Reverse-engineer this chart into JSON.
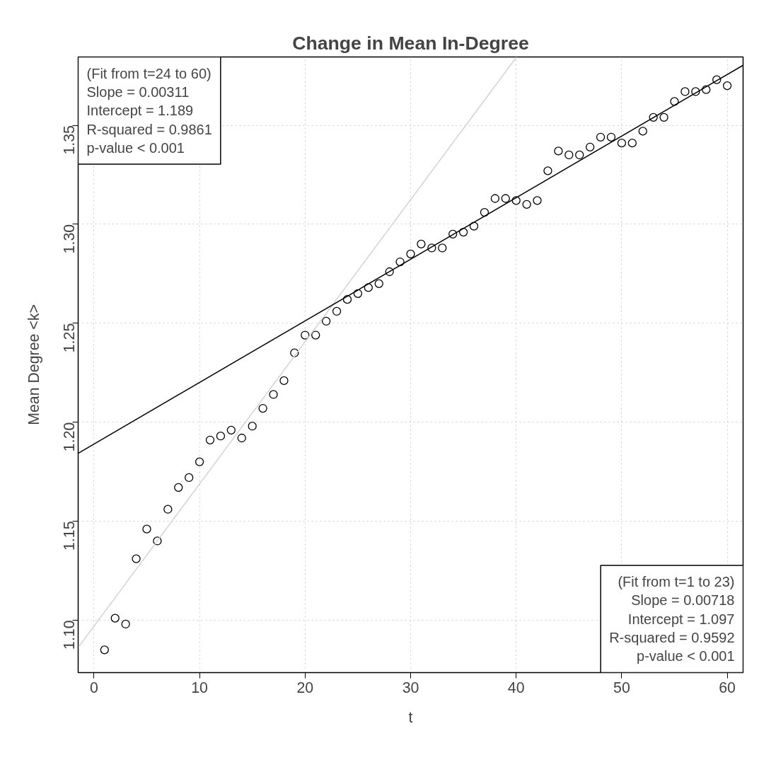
{
  "chart_data": {
    "type": "scatter",
    "title": "Change in Mean In-Degree",
    "xlabel": "t",
    "ylabel": "Mean Degree <k>",
    "xlim": [
      -1.5,
      61.5
    ],
    "ylim": [
      1.0735,
      1.3845
    ],
    "xticks": [
      0,
      10,
      20,
      30,
      40,
      50,
      60
    ],
    "yticks": [
      {
        "value": 1.1,
        "label": "1.10"
      },
      {
        "value": 1.15,
        "label": "1.15"
      },
      {
        "value": 1.2,
        "label": "1.20"
      },
      {
        "value": 1.25,
        "label": "1.25"
      },
      {
        "value": 1.3,
        "label": "1.30"
      },
      {
        "value": 1.35,
        "label": "1.35"
      }
    ],
    "grid": true,
    "x": [
      1,
      2,
      3,
      4,
      5,
      6,
      7,
      8,
      9,
      10,
      11,
      12,
      13,
      14,
      15,
      16,
      17,
      18,
      19,
      20,
      21,
      22,
      23,
      24,
      25,
      26,
      27,
      28,
      29,
      30,
      31,
      32,
      33,
      34,
      35,
      36,
      37,
      38,
      39,
      40,
      41,
      42,
      43,
      44,
      45,
      46,
      47,
      48,
      49,
      50,
      51,
      52,
      53,
      54,
      55,
      56,
      57,
      58,
      59,
      60
    ],
    "series": [
      {
        "marker": "circle",
        "color": "#000000",
        "values": [
          1.085,
          1.101,
          1.098,
          1.131,
          1.146,
          1.14,
          1.156,
          1.167,
          1.172,
          1.18,
          1.191,
          1.193,
          1.196,
          1.192,
          1.198,
          1.207,
          1.214,
          1.221,
          1.235,
          1.244,
          1.244,
          1.251,
          1.256,
          1.262,
          1.265,
          1.268,
          1.27,
          1.276,
          1.281,
          1.285,
          1.29,
          1.288,
          1.288,
          1.295,
          1.296,
          1.299,
          1.306,
          1.313,
          1.313,
          1.312,
          1.31,
          1.312,
          1.327,
          1.337,
          1.335,
          1.335,
          1.339,
          1.344,
          1.344,
          1.341,
          1.341,
          1.347,
          1.354,
          1.354,
          1.362,
          1.367,
          1.367,
          1.368,
          1.373,
          1.37
        ]
      },
      {
        "type": "line",
        "marker": "none",
        "color": "#d3d3d3",
        "x": [
          -1.5,
          40.04
        ],
        "values": [
          1.0862,
          1.3845
        ]
      },
      {
        "type": "line",
        "marker": "none",
        "color": "#000000",
        "x": [
          -1.5,
          61.5
        ],
        "values": [
          1.1843,
          1.3803
        ]
      }
    ],
    "annotations": [
      "(Fit from t=24 to 60)\nSlope = 0.00311\nIntercept = 1.189\nR-squared = 0.9861\np-value < 0.001",
      "(Fit from t=1 to 23)\nSlope = 0.00718\nIntercept = 1.097\nR-squared = 0.9592\np-value < 0.001"
    ]
  }
}
